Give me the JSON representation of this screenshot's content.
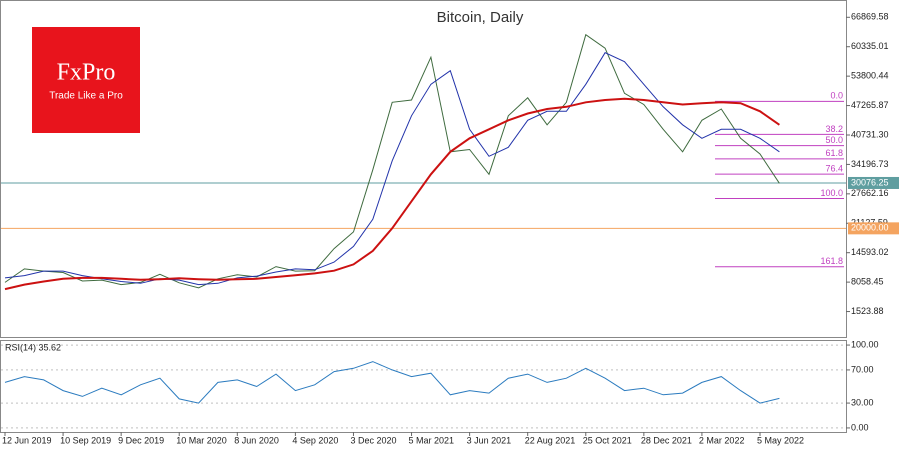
{
  "logo": {
    "brand": "FxPro",
    "tagline": "Trade Like a Pro"
  },
  "chart_data": [
    {
      "type": "line",
      "title": "Bitcoin, Daily",
      "categories": [
        "12 Jun 2019",
        null,
        null,
        "10 Sep 2019",
        null,
        null,
        "9 Dec 2019",
        null,
        null,
        "10 Mar 2020",
        null,
        null,
        "8 Jun 2020",
        null,
        null,
        "4 Sep 2020",
        null,
        null,
        "3 Dec 2020",
        null,
        null,
        "5 Mar 2021",
        null,
        null,
        "3 Jun 2021",
        null,
        null,
        "22 Aug 2021",
        null,
        null,
        "25 Oct 2021",
        null,
        null,
        "28 Dec 2021",
        null,
        null,
        "2 Mar 2022",
        null,
        null,
        "5 May 2022",
        null
      ],
      "series": [
        {
          "color": "#3f6b3f",
          "values": [
            8000,
            11000,
            10500,
            10200,
            8300,
            8500,
            7500,
            8000,
            9800,
            7900,
            6800,
            8800,
            9700,
            9200,
            11500,
            10500,
            10600,
            15500,
            19200,
            33000,
            48000,
            48500,
            58000,
            37000,
            37500,
            32000,
            45000,
            49000,
            43000,
            48000,
            63000,
            60000,
            50000,
            47500,
            42000,
            37000,
            44000,
            46500,
            40000,
            36500,
            30000
          ]
        },
        {
          "color": "#2233aa",
          "values": [
            9000,
            9500,
            10500,
            10500,
            9500,
            8800,
            8200,
            7800,
            8800,
            8500,
            7500,
            7800,
            9000,
            9400,
            10300,
            11000,
            10800,
            12500,
            16000,
            22000,
            35000,
            45000,
            52000,
            55000,
            42000,
            36000,
            38000,
            44000,
            46000,
            46000,
            52000,
            59000,
            57000,
            52000,
            47000,
            43000,
            40000,
            42000,
            42000,
            40000,
            37000
          ]
        },
        {
          "color": "#cc1111",
          "values": [
            6500,
            7500,
            8200,
            8800,
            9000,
            9000,
            8800,
            8600,
            8700,
            8900,
            8700,
            8600,
            8700,
            8800,
            9200,
            9600,
            10000,
            10600,
            12000,
            15000,
            20000,
            26000,
            32000,
            37000,
            40000,
            42000,
            44000,
            45500,
            46500,
            47000,
            48000,
            48500,
            48800,
            48500,
            48000,
            47500,
            47800,
            48000,
            47800,
            46000,
            43000
          ]
        }
      ],
      "ylim": [
        -4129,
        70488
      ],
      "yticks": [
        66869.58,
        60335.01,
        53800.44,
        47265.87,
        {
          "value": 40731.3,
          "label": "40731.30"
        },
        34196.73,
        27662.16,
        21127.59,
        14593.02,
        8058.45,
        1523.88
      ],
      "levels_color": "#c040c0",
      "levels": [
        {
          "label": "0.0",
          "value": 48200
        },
        {
          "label": "38.2",
          "value": 40868
        },
        {
          "label": "50.0",
          "value": 38380
        },
        {
          "label": "61.8",
          "value": 35440
        },
        {
          "label": "76.4",
          "value": 32050
        },
        {
          "label": "100.0",
          "value": 26620
        },
        {
          "label": "161.8",
          "value": 11474
        }
      ],
      "hlines": [
        {
          "value": 30076.25,
          "label": "30076.25",
          "color": "#5f9ea0"
        },
        {
          "value": 20000,
          "label": "20000.00",
          "color": "#f4a460"
        }
      ]
    },
    {
      "type": "line",
      "title": "RSI(14) 35.62",
      "series": [
        {
          "color": "#2b7bbf",
          "values": [
            55,
            62,
            58,
            45,
            38,
            48,
            40,
            52,
            60,
            35,
            30,
            55,
            58,
            50,
            65,
            45,
            52,
            68,
            72,
            80,
            70,
            62,
            66,
            40,
            45,
            42,
            60,
            65,
            55,
            60,
            72,
            60,
            45,
            48,
            40,
            42,
            55,
            62,
            45,
            30,
            35.62
          ]
        }
      ],
      "ylim": [
        -4.9,
        104.9
      ],
      "yticks": [
        {
          "value": 100,
          "label": "100.00"
        },
        {
          "value": 70,
          "label": "70.00"
        },
        {
          "value": 30,
          "label": "30.00"
        },
        {
          "value": 0,
          "label": "0.00"
        }
      ],
      "grid": true
    }
  ]
}
